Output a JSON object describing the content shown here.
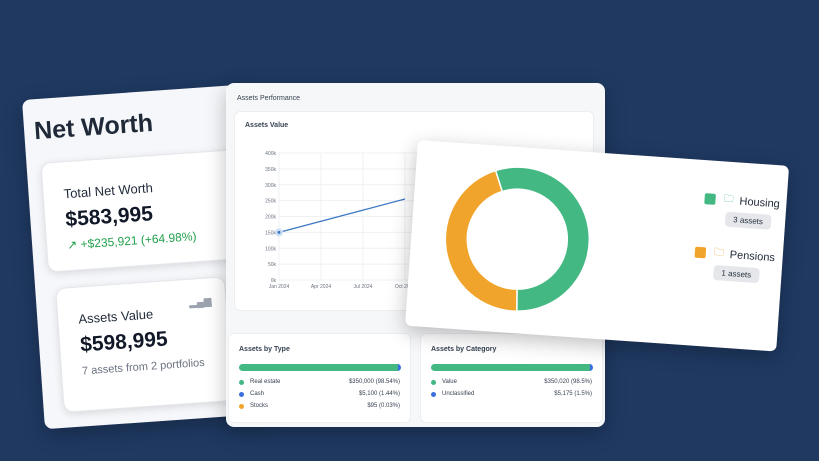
{
  "networth": {
    "title": "Net Worth",
    "total": {
      "label": "Total Net Worth",
      "value": "$583,995",
      "change": "+$235,921 (+64.98%)"
    },
    "assets": {
      "label": "Assets Value",
      "value": "$598,995",
      "note": "7 assets from 2 portfolios"
    }
  },
  "main": {
    "title": "Assets Performance",
    "by_type": {
      "title": "Assets by Type",
      "rows": [
        {
          "label": "Real estate",
          "value": "$350,000 (98.54%)",
          "color": "#44b883"
        },
        {
          "label": "Cash",
          "value": "$5,100 (1.44%)",
          "color": "#3b6fe0"
        },
        {
          "label": "Stocks",
          "value": "$95 (0.03%)",
          "color": "#f0a42b"
        }
      ]
    },
    "by_category": {
      "title": "Assets by Category",
      "rows": [
        {
          "label": "Value",
          "value": "$350,020 (98.5%)",
          "color": "#44b883"
        },
        {
          "label": "Unclassified",
          "value": "$5,175 (1.5%)",
          "color": "#3b6fe0"
        }
      ]
    }
  },
  "chart_data": {
    "type": "line",
    "title": "Assets Value",
    "x": [
      "Jan 2024",
      "Apr 2024",
      "Jul 2024",
      "Oct 2024"
    ],
    "series": [
      {
        "values": [
          150000,
          185000,
          220000,
          255000
        ],
        "color": "#3b78c4"
      }
    ],
    "ylim": [
      0,
      400000
    ],
    "yticks": [
      "0k",
      "50k",
      "100k",
      "150k",
      "200k",
      "250k",
      "300k",
      "350k",
      "400k"
    ],
    "grid": true
  },
  "donut": {
    "type": "pie",
    "slices": [
      {
        "label": "Housing",
        "badge": "3 assets",
        "color": "#44b883",
        "value": 55
      },
      {
        "label": "Pensions",
        "badge": "1 assets",
        "color": "#f0a42b",
        "value": 45
      }
    ]
  }
}
